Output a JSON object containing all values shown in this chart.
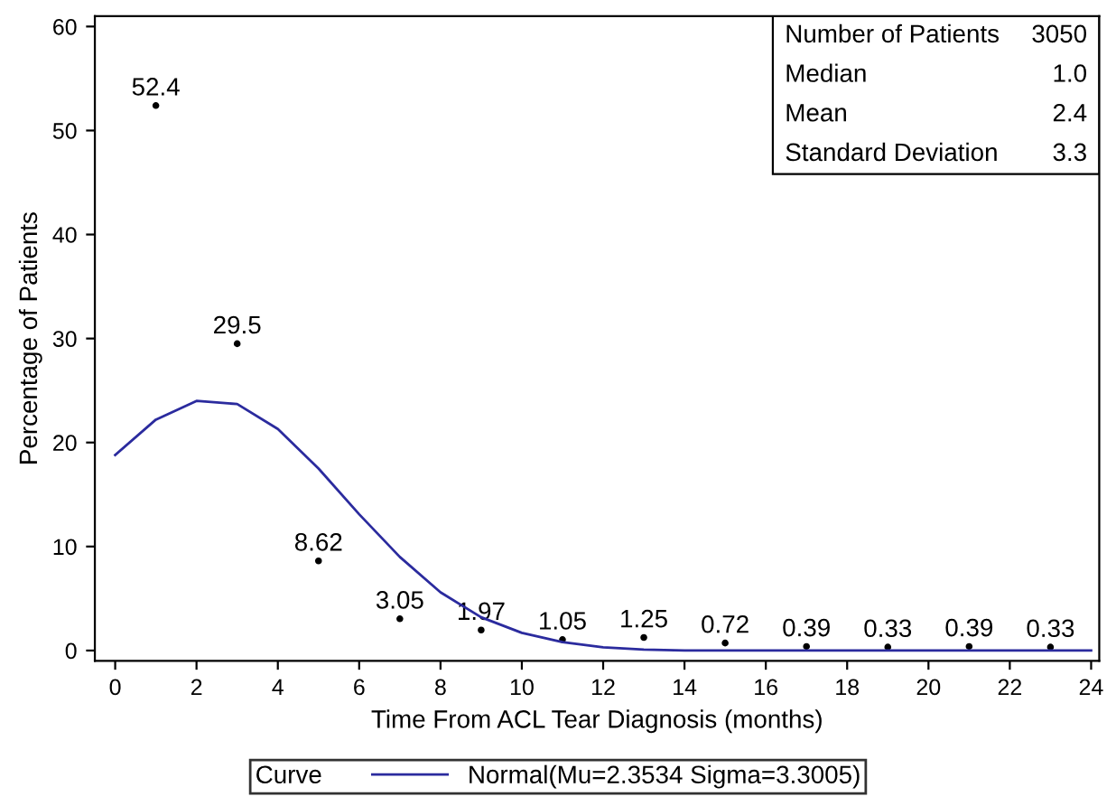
{
  "chart_data": {
    "type": "line",
    "xlabel": "Time From ACL Tear Diagnosis (months)",
    "ylabel": "Percentage of Patients",
    "series": [
      {
        "name": "Normal(Mu=2.3534 Sigma=3.3005)",
        "color": "#2b2b9e",
        "x": [
          0,
          1,
          2,
          3,
          4,
          5,
          6,
          7,
          8,
          9,
          10,
          11,
          12,
          13,
          14,
          16,
          18,
          20,
          22,
          24
        ],
        "values": [
          18.8,
          22.2,
          24.0,
          23.7,
          21.3,
          17.5,
          13.1,
          9.0,
          5.6,
          3.2,
          1.7,
          0.8,
          0.3,
          0.1,
          0,
          0,
          0,
          0,
          0,
          0
        ]
      },
      {
        "type": "scatter",
        "marker": "circle",
        "color": "#000000",
        "x": [
          1,
          3,
          5,
          7,
          9,
          11,
          13,
          15,
          17,
          19,
          21,
          23
        ],
        "values": [
          52.4,
          29.5,
          8.62,
          3.05,
          1.97,
          1.05,
          1.25,
          0.72,
          0.39,
          0.33,
          0.39,
          0.33
        ],
        "value_labels": [
          "52.4",
          "29.5",
          "8.62",
          "3.05",
          "1.97",
          "1.05",
          "1.25",
          "0.72",
          "0.39",
          "0.33",
          "0.39",
          "0.33"
        ]
      }
    ],
    "legend_title": "Curve",
    "legend": "bottom",
    "annotations": [
      "Number of Patients",
      "3050",
      "Median",
      "1.0",
      "Mean",
      "2.4",
      "Standard Deviation",
      "3.3"
    ],
    "xlim": [
      -0.5,
      24.2
    ],
    "xticks": [
      0,
      2,
      4,
      6,
      8,
      10,
      12,
      14,
      16,
      18,
      20,
      22,
      24
    ],
    "ylim": [
      -1,
      61
    ],
    "yticks": [
      0,
      10,
      20,
      30,
      40,
      50,
      60
    ],
    "grid": false
  }
}
